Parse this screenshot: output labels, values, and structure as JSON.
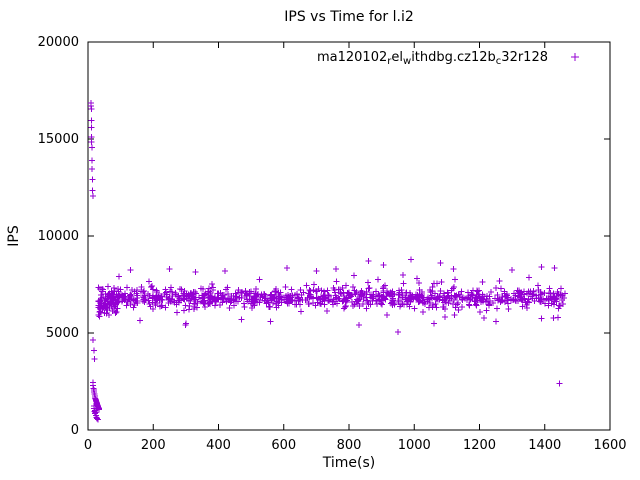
{
  "chart_data": {
    "type": "scatter",
    "title": "IPS vs Time for l.i2",
    "xlabel": "Time(s)",
    "ylabel": "IPS",
    "xlim": [
      0,
      1600
    ],
    "ylim": [
      0,
      20000
    ],
    "xticks": [
      0,
      200,
      400,
      600,
      800,
      1000,
      1200,
      1400,
      1600
    ],
    "yticks": [
      0,
      5000,
      10000,
      15000,
      20000
    ],
    "grid": false,
    "legend_position": "top-right-inside",
    "marker": "plus",
    "marker_color": "#9400d3",
    "axis_color": "#000000",
    "legend_segments": [
      {
        "t": "ma120102",
        "sub": false
      },
      {
        "t": "r",
        "sub": true
      },
      {
        "t": "el",
        "sub": false
      },
      {
        "t": "w",
        "sub": true
      },
      {
        "t": "ithdbg.cz12b",
        "sub": false
      },
      {
        "t": "c",
        "sub": true
      },
      {
        "t": "32r128",
        "sub": false
      }
    ],
    "series": [
      {
        "name": "ma120102_rel_withdbg.cz12b_c32r128",
        "explicit_points": [
          [
            9,
            16850
          ],
          [
            9,
            16700
          ],
          [
            10,
            16550
          ],
          [
            10,
            15950
          ],
          [
            10,
            15600
          ],
          [
            11,
            15100
          ],
          [
            11,
            14850
          ],
          [
            12,
            14550
          ],
          [
            13,
            13900
          ],
          [
            13,
            13450
          ],
          [
            14,
            12900
          ],
          [
            14,
            12350
          ],
          [
            15,
            12050
          ],
          [
            16,
            4650
          ],
          [
            18,
            4100
          ],
          [
            20,
            3650
          ],
          [
            15,
            2450
          ],
          [
            16,
            2300
          ],
          [
            17,
            2150
          ],
          [
            18,
            2050
          ],
          [
            19,
            1950
          ],
          [
            20,
            1850
          ],
          [
            21,
            1750
          ],
          [
            22,
            1650
          ],
          [
            23,
            1600
          ],
          [
            24,
            1550
          ],
          [
            25,
            1500
          ],
          [
            26,
            1450
          ],
          [
            27,
            1400
          ],
          [
            28,
            1350
          ],
          [
            29,
            1300
          ],
          [
            30,
            1250
          ],
          [
            31,
            1200
          ],
          [
            32,
            1150
          ],
          [
            33,
            1100
          ],
          [
            34,
            1050
          ],
          [
            20,
            950
          ],
          [
            22,
            850
          ],
          [
            24,
            750
          ],
          [
            26,
            650
          ],
          [
            28,
            600
          ],
          [
            30,
            550
          ],
          [
            18,
            1250
          ],
          [
            19,
            1100
          ],
          [
            21,
            1000
          ],
          [
            23,
            900
          ],
          [
            35,
            5850
          ],
          [
            40,
            6050
          ],
          [
            45,
            6250
          ],
          [
            50,
            6400
          ],
          [
            95,
            7900
          ],
          [
            130,
            8250
          ],
          [
            250,
            8300
          ],
          [
            330,
            8150
          ],
          [
            420,
            8200
          ],
          [
            610,
            8350
          ],
          [
            700,
            8200
          ],
          [
            760,
            8300
          ],
          [
            860,
            8700
          ],
          [
            905,
            8500
          ],
          [
            990,
            8800
          ],
          [
            1080,
            8600
          ],
          [
            1120,
            8300
          ],
          [
            1300,
            8250
          ],
          [
            1390,
            8400
          ],
          [
            1430,
            8350
          ],
          [
            160,
            5650
          ],
          [
            300,
            5500
          ],
          [
            470,
            5700
          ],
          [
            560,
            5600
          ],
          [
            830,
            5400
          ],
          [
            950,
            5050
          ],
          [
            1060,
            5500
          ],
          [
            1250,
            5600
          ],
          [
            1440,
            5800
          ],
          [
            1445,
            2400
          ]
        ],
        "random_bands": [
          {
            "count": 820,
            "x_min": 30,
            "x_max": 1462,
            "y_mean": 6800,
            "y_sd": 230,
            "y_min": 5600,
            "y_max": 8300,
            "seed": 42
          },
          {
            "count": 140,
            "x_min": 60,
            "x_max": 1455,
            "y_mean": 6750,
            "y_sd": 520,
            "y_min": 5400,
            "y_max": 8600,
            "seed": 7
          },
          {
            "count": 60,
            "x_min": 30,
            "x_max": 90,
            "y_mean": 6550,
            "y_sd": 300,
            "y_min": 5800,
            "y_max": 7400,
            "seed": 13
          }
        ]
      }
    ]
  }
}
